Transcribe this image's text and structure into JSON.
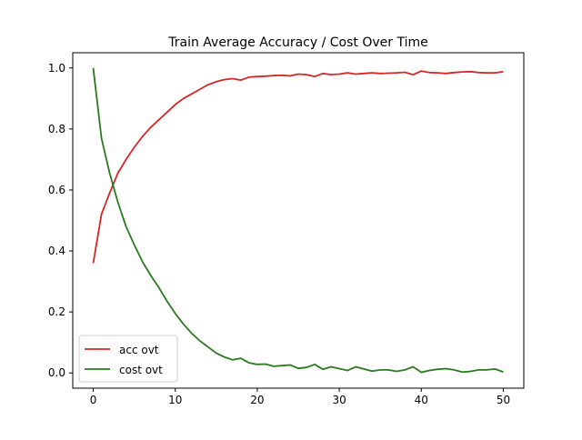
{
  "chart_data": {
    "type": "line",
    "title": "Train Average Accuracy / Cost Over Time",
    "xlabel": "",
    "ylabel": "",
    "xlim": [
      -2.5,
      52.5
    ],
    "ylim": [
      -0.05,
      1.05
    ],
    "xticks": [
      0,
      10,
      20,
      30,
      40,
      50
    ],
    "yticks": [
      0.0,
      0.2,
      0.4,
      0.6,
      0.8,
      1.0
    ],
    "xtick_labels": [
      "0",
      "10",
      "20",
      "30",
      "40",
      "50"
    ],
    "ytick_labels": [
      "0.0",
      "0.2",
      "0.4",
      "0.6",
      "0.8",
      "1.0"
    ],
    "grid": false,
    "legend_position": "lower-left",
    "x": [
      0,
      1,
      2,
      3,
      4,
      5,
      6,
      7,
      8,
      9,
      10,
      11,
      12,
      13,
      14,
      15,
      16,
      17,
      18,
      19,
      20,
      21,
      22,
      23,
      24,
      25,
      26,
      27,
      28,
      29,
      30,
      31,
      32,
      33,
      34,
      35,
      36,
      37,
      38,
      39,
      40,
      41,
      42,
      43,
      44,
      45,
      46,
      47,
      48,
      49,
      50
    ],
    "series": [
      {
        "name": "acc ovt",
        "color": "#d62728",
        "values": [
          0.36,
          0.52,
          0.59,
          0.655,
          0.7,
          0.74,
          0.775,
          0.805,
          0.83,
          0.855,
          0.88,
          0.9,
          0.915,
          0.93,
          0.945,
          0.955,
          0.962,
          0.965,
          0.96,
          0.97,
          0.972,
          0.973,
          0.975,
          0.976,
          0.974,
          0.98,
          0.978,
          0.972,
          0.982,
          0.978,
          0.98,
          0.984,
          0.98,
          0.982,
          0.984,
          0.982,
          0.983,
          0.984,
          0.986,
          0.978,
          0.99,
          0.985,
          0.984,
          0.982,
          0.985,
          0.987,
          0.988,
          0.985,
          0.984,
          0.984,
          0.988
        ]
      },
      {
        "name": "cost ovt",
        "color": "#2a7a1f",
        "values": [
          1.0,
          0.77,
          0.655,
          0.56,
          0.48,
          0.42,
          0.365,
          0.32,
          0.28,
          0.235,
          0.195,
          0.16,
          0.13,
          0.105,
          0.085,
          0.065,
          0.052,
          0.043,
          0.048,
          0.033,
          0.028,
          0.029,
          0.022,
          0.024,
          0.026,
          0.015,
          0.018,
          0.028,
          0.012,
          0.02,
          0.014,
          0.008,
          0.02,
          0.013,
          0.006,
          0.01,
          0.01,
          0.005,
          0.01,
          0.02,
          0.002,
          0.008,
          0.012,
          0.014,
          0.01,
          0.003,
          0.005,
          0.01,
          0.01,
          0.013,
          0.003
        ]
      }
    ]
  }
}
